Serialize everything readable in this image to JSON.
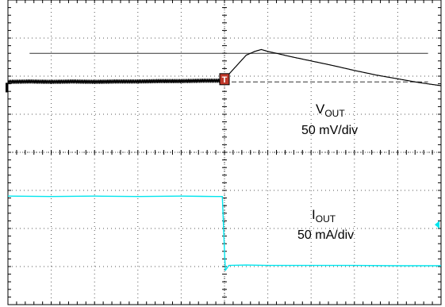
{
  "chart_data": {
    "type": "line",
    "title": "",
    "grid": {
      "x_divisions": 10,
      "y_divisions": 8,
      "minor_ticks_per_division": 5,
      "style": "dotted"
    },
    "colors": {
      "frame": "#000000",
      "grid": "#555555",
      "vout_trace": "#000000",
      "iout_trace": "#00e5ee",
      "cursor_line": "#333333",
      "marker_fill": "#c0392b"
    },
    "x": {
      "unit": "div",
      "range": [
        0,
        10
      ],
      "trigger_at": 5.0
    },
    "y": {
      "unit": "div",
      "range": [
        -4,
        4
      ]
    },
    "labels": {
      "vout": {
        "main": "V",
        "sub": "OUT",
        "scale": "50 mV/div"
      },
      "iout": {
        "main": "I",
        "sub": "OUT",
        "scale": "50 mA/div"
      }
    },
    "reference_lines": {
      "vout_peak_cursor": {
        "y": 2.6,
        "x_range": [
          0.5,
          9.7
        ]
      },
      "vout_baseline_dashed": {
        "y": 1.85,
        "x_range": [
          5.0,
          9.7
        ]
      }
    },
    "series": [
      {
        "name": "VOUT",
        "scale": "50 mV/div",
        "x": [
          0,
          0.5,
          1,
          1.5,
          2,
          2.5,
          3,
          3.5,
          4,
          4.5,
          4.9,
          5.0,
          5.1,
          5.3,
          5.5,
          5.7,
          5.85,
          6.0,
          6.2,
          6.5,
          7.0,
          7.5,
          8.0,
          8.5,
          9.0,
          9.5,
          10.0
        ],
        "y": [
          1.85,
          1.86,
          1.85,
          1.86,
          1.85,
          1.86,
          1.86,
          1.87,
          1.87,
          1.88,
          1.88,
          1.9,
          2.05,
          2.3,
          2.55,
          2.65,
          2.7,
          2.65,
          2.6,
          2.52,
          2.4,
          2.28,
          2.15,
          2.03,
          1.93,
          1.83,
          1.75
        ],
        "ripple": true
      },
      {
        "name": "IOUT",
        "scale": "50 mA/div",
        "x": [
          0,
          1,
          2,
          3,
          4,
          4.8,
          4.95,
          5.0,
          5.02,
          5.1,
          5.5,
          6,
          7,
          8,
          9,
          10
        ],
        "y": [
          -1.15,
          -1.16,
          -1.15,
          -1.16,
          -1.15,
          -1.16,
          -1.16,
          -2.6,
          -3.1,
          -2.97,
          -2.96,
          -2.97,
          -2.97,
          -2.97,
          -2.98,
          -2.98
        ],
        "ripple": false
      }
    ],
    "markers": [
      {
        "name": "trigger-level-marker",
        "symbol": "T",
        "x": 5.0,
        "y": 1.9
      },
      {
        "name": "ch1-ground-marker",
        "side": "left",
        "y": 1.7
      },
      {
        "name": "ch2-level-marker",
        "side": "right",
        "y": -1.9
      }
    ]
  }
}
